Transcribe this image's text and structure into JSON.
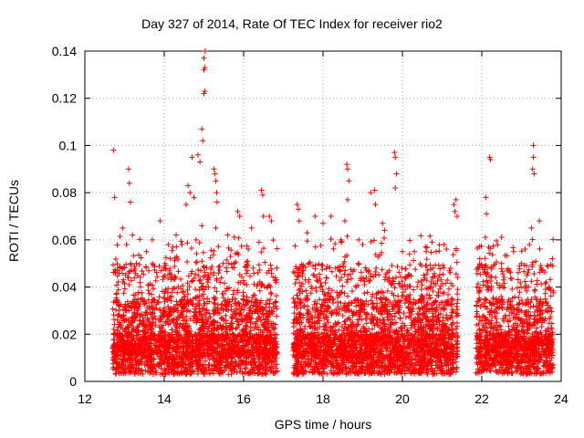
{
  "chart_data": {
    "type": "scatter",
    "title": "Day 327 of 2014, Rate Of TEC Index for receiver rio2",
    "xlabel": "GPS time / hours",
    "ylabel": "ROTI / TECUs",
    "xlim": [
      12,
      24
    ],
    "ylim": [
      0,
      0.14
    ],
    "xticks": [
      12,
      14,
      16,
      18,
      20,
      22,
      24
    ],
    "xtick_labels": [
      "12",
      "14",
      "16",
      "18",
      "20",
      "22",
      "24"
    ],
    "yticks": [
      0,
      0.02,
      0.04,
      0.06,
      0.08,
      0.1,
      0.12,
      0.14
    ],
    "ytick_labels": [
      "0",
      "0.02",
      "0.04",
      "0.06",
      "0.08",
      "0.1",
      "0.12",
      "0.14"
    ],
    "grid": true,
    "marker": "+",
    "color": "#ff0000",
    "data_windows": [
      {
        "start": 12.7,
        "end": 16.85
      },
      {
        "start": 17.25,
        "end": 21.3
      },
      {
        "start": 21.35,
        "end": 21.4
      },
      {
        "start": 21.85,
        "end": 23.8
      }
    ],
    "series": [
      {
        "name": "ROTI",
        "points": [
          [
            12.72,
            0.098
          ],
          [
            12.75,
            0.078
          ],
          [
            12.95,
            0.065
          ],
          [
            13.05,
            0.058
          ],
          [
            13.1,
            0.09
          ],
          [
            13.12,
            0.084
          ],
          [
            13.15,
            0.076
          ],
          [
            13.2,
            0.062
          ],
          [
            13.3,
            0.05
          ],
          [
            13.55,
            0.055
          ],
          [
            13.7,
            0.06
          ],
          [
            13.9,
            0.068
          ],
          [
            14.1,
            0.058
          ],
          [
            14.3,
            0.062
          ],
          [
            14.45,
            0.058
          ],
          [
            14.55,
            0.075
          ],
          [
            14.6,
            0.083
          ],
          [
            14.65,
            0.08
          ],
          [
            14.7,
            0.095
          ],
          [
            14.75,
            0.078
          ],
          [
            14.8,
            0.06
          ],
          [
            14.85,
            0.096
          ],
          [
            14.9,
            0.093
          ],
          [
            14.95,
            0.107
          ],
          [
            14.97,
            0.102
          ],
          [
            15.0,
            0.122
          ],
          [
            15.02,
            0.123
          ],
          [
            15.0,
            0.132
          ],
          [
            15.02,
            0.133
          ],
          [
            15.03,
            0.14
          ],
          [
            15.0,
            0.137
          ],
          [
            14.95,
            0.066
          ],
          [
            15.25,
            0.09
          ],
          [
            15.28,
            0.088
          ],
          [
            15.3,
            0.085
          ],
          [
            15.32,
            0.08
          ],
          [
            15.33,
            0.076
          ],
          [
            15.3,
            0.065
          ],
          [
            15.6,
            0.062
          ],
          [
            15.85,
            0.072
          ],
          [
            15.9,
            0.07
          ],
          [
            16.2,
            0.065
          ],
          [
            16.45,
            0.081
          ],
          [
            16.48,
            0.079
          ],
          [
            16.5,
            0.07
          ],
          [
            16.65,
            0.07
          ],
          [
            16.7,
            0.068
          ],
          [
            17.35,
            0.075
          ],
          [
            17.38,
            0.073
          ],
          [
            17.4,
            0.068
          ],
          [
            17.6,
            0.063
          ],
          [
            17.8,
            0.07
          ],
          [
            18.0,
            0.067
          ],
          [
            18.2,
            0.07
          ],
          [
            18.45,
            0.06
          ],
          [
            18.55,
            0.068
          ],
          [
            18.6,
            0.092
          ],
          [
            18.62,
            0.09
          ],
          [
            18.65,
            0.085
          ],
          [
            18.62,
            0.077
          ],
          [
            18.9,
            0.06
          ],
          [
            19.0,
            0.058
          ],
          [
            19.2,
            0.08
          ],
          [
            19.3,
            0.081
          ],
          [
            19.32,
            0.075
          ],
          [
            19.5,
            0.067
          ],
          [
            19.55,
            0.064
          ],
          [
            19.8,
            0.097
          ],
          [
            19.82,
            0.095
          ],
          [
            19.85,
            0.088
          ],
          [
            19.82,
            0.082
          ],
          [
            20.0,
            0.055
          ],
          [
            20.3,
            0.055
          ],
          [
            20.6,
            0.055
          ],
          [
            20.85,
            0.055
          ],
          [
            21.05,
            0.058
          ],
          [
            21.3,
            0.075
          ],
          [
            21.35,
            0.077
          ],
          [
            21.32,
            0.072
          ],
          [
            21.38,
            0.07
          ],
          [
            21.95,
            0.052
          ],
          [
            22.1,
            0.078
          ],
          [
            22.12,
            0.071
          ],
          [
            22.2,
            0.095
          ],
          [
            22.22,
            0.094
          ],
          [
            22.5,
            0.05
          ],
          [
            22.8,
            0.055
          ],
          [
            23.0,
            0.05
          ],
          [
            23.2,
            0.058
          ],
          [
            23.25,
            0.065
          ],
          [
            23.28,
            0.09
          ],
          [
            23.3,
            0.1
          ],
          [
            23.3,
            0.095
          ],
          [
            23.32,
            0.088
          ],
          [
            23.45,
            0.068
          ],
          [
            23.6,
            0.035
          ],
          [
            23.7,
            0.03
          ],
          [
            23.78,
            0.02
          ]
        ]
      }
    ]
  }
}
